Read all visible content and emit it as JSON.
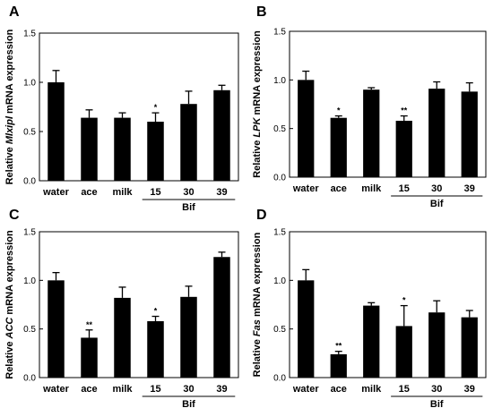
{
  "chart_data": [
    {
      "panel": "A",
      "type": "bar",
      "ylabel": {
        "pre": "Relative ",
        "gene": "Mlxipl",
        "post": " mRNA expression"
      },
      "categories": [
        "water",
        "ace",
        "milk",
        "15",
        "30",
        "39"
      ],
      "group_label": "Bif",
      "group_members": [
        "15",
        "30",
        "39"
      ],
      "values": [
        1.0,
        0.64,
        0.64,
        0.6,
        0.78,
        0.92
      ],
      "errors": [
        0.12,
        0.08,
        0.05,
        0.09,
        0.13,
        0.05
      ],
      "significance": [
        "",
        "",
        "",
        "*",
        "",
        ""
      ],
      "ylim": [
        0,
        1.5
      ],
      "yticks": [
        "0.0",
        "0.5",
        "1.0",
        "1.5"
      ]
    },
    {
      "panel": "B",
      "type": "bar",
      "ylabel": {
        "pre": "Relative ",
        "gene": "LPK",
        "post": " mRNA expression"
      },
      "categories": [
        "water",
        "ace",
        "milk",
        "15",
        "30",
        "39"
      ],
      "group_label": "Bif",
      "group_members": [
        "15",
        "30",
        "39"
      ],
      "values": [
        1.0,
        0.61,
        0.9,
        0.58,
        0.91,
        0.88
      ],
      "errors": [
        0.09,
        0.02,
        0.02,
        0.05,
        0.07,
        0.09
      ],
      "significance": [
        "",
        "*",
        "",
        "**",
        "",
        ""
      ],
      "ylim": [
        0,
        1.5
      ],
      "yticks": [
        "0.0",
        "0.5",
        "1.0",
        "1.5"
      ]
    },
    {
      "panel": "C",
      "type": "bar",
      "ylabel": {
        "pre": "Relative ",
        "gene": "ACC",
        "post": " mRNA expression"
      },
      "categories": [
        "water",
        "ace",
        "milk",
        "15",
        "30",
        "39"
      ],
      "group_label": "Bif",
      "group_members": [
        "15",
        "30",
        "39"
      ],
      "values": [
        1.0,
        0.41,
        0.82,
        0.58,
        0.83,
        1.24
      ],
      "errors": [
        0.08,
        0.08,
        0.11,
        0.05,
        0.11,
        0.05
      ],
      "significance": [
        "",
        "**",
        "",
        "*",
        "",
        ""
      ],
      "ylim": [
        0,
        1.5
      ],
      "yticks": [
        "0.0",
        "0.5",
        "1.0",
        "1.5"
      ]
    },
    {
      "panel": "D",
      "type": "bar",
      "ylabel": {
        "pre": "Relative ",
        "gene": "Fas",
        "post": " mRNA expression"
      },
      "categories": [
        "water",
        "ace",
        "milk",
        "15",
        "30",
        "39"
      ],
      "group_label": "Bif",
      "group_members": [
        "15",
        "30",
        "39"
      ],
      "values": [
        1.0,
        0.24,
        0.74,
        0.53,
        0.67,
        0.62
      ],
      "errors": [
        0.11,
        0.03,
        0.03,
        0.21,
        0.12,
        0.07
      ],
      "significance": [
        "",
        "**",
        "",
        "*",
        "",
        ""
      ],
      "ylim": [
        0,
        1.5
      ],
      "yticks": [
        "0.0",
        "0.5",
        "1.0",
        "1.5"
      ]
    }
  ]
}
